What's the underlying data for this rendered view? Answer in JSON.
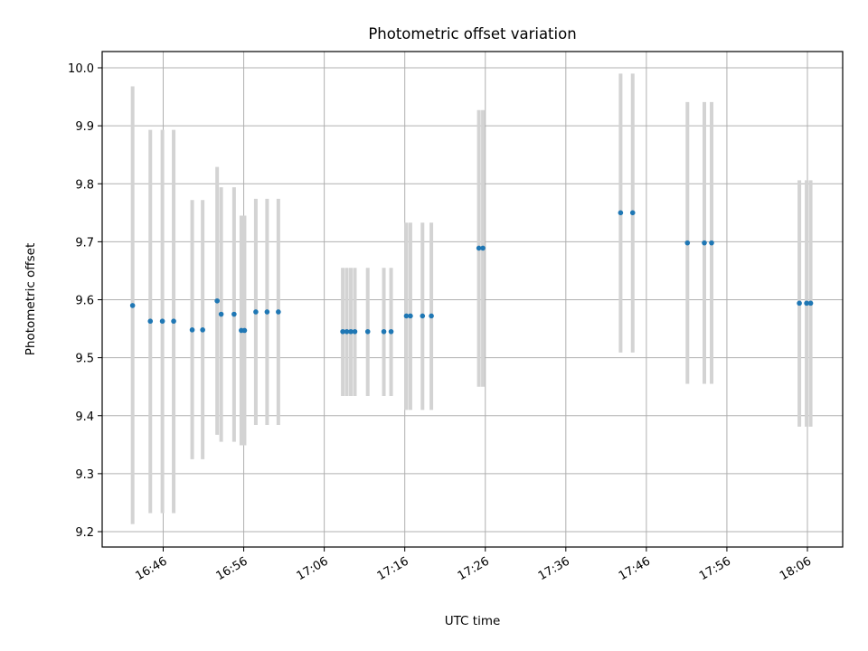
{
  "chart_data": {
    "type": "scatter",
    "title": "Photometric offset variation",
    "xlabel": "UTC time",
    "ylabel": "Photometric offset",
    "x_ticks": [
      "16:46",
      "16:56",
      "17:06",
      "17:16",
      "17:26",
      "17:36",
      "17:46",
      "17:56",
      "18:06"
    ],
    "y_ticks": [
      "9.2",
      "9.3",
      "9.4",
      "9.5",
      "9.6",
      "9.7",
      "9.8",
      "9.9",
      "10.0"
    ],
    "xlim": [
      "16:42:12",
      "18:06:24"
    ],
    "ylim": [
      9.175,
      10.025
    ],
    "grid": true,
    "colors": {
      "points": "#1f77b4",
      "error_bars": "#d3d3d3",
      "grid": "#b0b0b0"
    },
    "points": [
      {
        "t": "16:42:12",
        "y": 9.59,
        "lo": 9.213,
        "hi": 9.968
      },
      {
        "t": "16:44:24",
        "y": 9.563,
        "lo": 9.232,
        "hi": 9.893
      },
      {
        "t": "16:45:54",
        "y": 9.563,
        "lo": 9.232,
        "hi": 9.893
      },
      {
        "t": "16:47:18",
        "y": 9.563,
        "lo": 9.232,
        "hi": 9.893
      },
      {
        "t": "16:49:36",
        "y": 9.548,
        "lo": 9.325,
        "hi": 9.772
      },
      {
        "t": "16:50:54",
        "y": 9.548,
        "lo": 9.325,
        "hi": 9.772
      },
      {
        "t": "16:52:42",
        "y": 9.598,
        "lo": 9.367,
        "hi": 9.829
      },
      {
        "t": "16:53:12",
        "y": 9.575,
        "lo": 9.355,
        "hi": 9.794
      },
      {
        "t": "16:54:48",
        "y": 9.575,
        "lo": 9.355,
        "hi": 9.794
      },
      {
        "t": "16:55:42",
        "y": 9.547,
        "lo": 9.349,
        "hi": 9.745
      },
      {
        "t": "16:56:06",
        "y": 9.547,
        "lo": 9.349,
        "hi": 9.745
      },
      {
        "t": "16:57:30",
        "y": 9.579,
        "lo": 9.384,
        "hi": 9.774
      },
      {
        "t": "16:58:54",
        "y": 9.579,
        "lo": 9.384,
        "hi": 9.774
      },
      {
        "t": "17:00:18",
        "y": 9.579,
        "lo": 9.384,
        "hi": 9.774
      },
      {
        "t": "17:08:18",
        "y": 9.545,
        "lo": 9.434,
        "hi": 9.655
      },
      {
        "t": "17:08:48",
        "y": 9.545,
        "lo": 9.434,
        "hi": 9.655
      },
      {
        "t": "17:09:18",
        "y": 9.545,
        "lo": 9.434,
        "hi": 9.655
      },
      {
        "t": "17:09:48",
        "y": 9.545,
        "lo": 9.434,
        "hi": 9.655
      },
      {
        "t": "17:11:24",
        "y": 9.545,
        "lo": 9.434,
        "hi": 9.655
      },
      {
        "t": "17:13:24",
        "y": 9.545,
        "lo": 9.434,
        "hi": 9.655
      },
      {
        "t": "17:14:18",
        "y": 9.545,
        "lo": 9.434,
        "hi": 9.655
      },
      {
        "t": "17:16:12",
        "y": 9.572,
        "lo": 9.41,
        "hi": 9.733
      },
      {
        "t": "17:16:42",
        "y": 9.572,
        "lo": 9.41,
        "hi": 9.733
      },
      {
        "t": "17:18:12",
        "y": 9.572,
        "lo": 9.41,
        "hi": 9.733
      },
      {
        "t": "17:19:18",
        "y": 9.572,
        "lo": 9.41,
        "hi": 9.733
      },
      {
        "t": "17:25:12",
        "y": 9.689,
        "lo": 9.45,
        "hi": 9.927
      },
      {
        "t": "17:25:42",
        "y": 9.689,
        "lo": 9.45,
        "hi": 9.927
      },
      {
        "t": "17:42:48",
        "y": 9.75,
        "lo": 9.509,
        "hi": 9.99
      },
      {
        "t": "17:44:18",
        "y": 9.75,
        "lo": 9.509,
        "hi": 9.99
      },
      {
        "t": "17:51:06",
        "y": 9.698,
        "lo": 9.455,
        "hi": 9.941
      },
      {
        "t": "17:53:12",
        "y": 9.698,
        "lo": 9.455,
        "hi": 9.941
      },
      {
        "t": "17:54:06",
        "y": 9.698,
        "lo": 9.455,
        "hi": 9.941
      },
      {
        "t": "18:05:00",
        "y": 9.594,
        "lo": 9.381,
        "hi": 9.806
      },
      {
        "t": "18:05:54",
        "y": 9.594,
        "lo": 9.381,
        "hi": 9.806
      },
      {
        "t": "18:06:24",
        "y": 9.594,
        "lo": 9.381,
        "hi": 9.806
      }
    ]
  }
}
